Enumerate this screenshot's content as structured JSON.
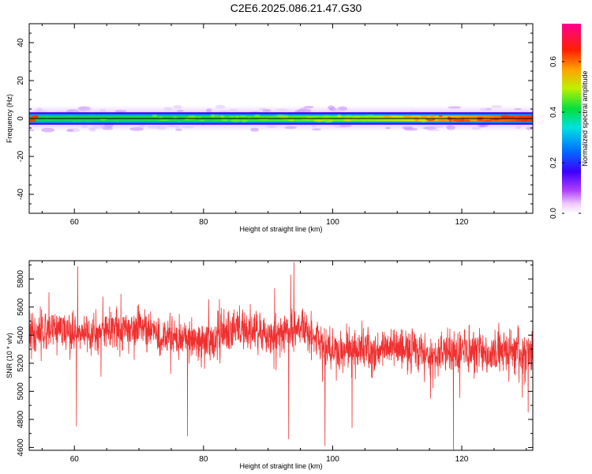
{
  "title": "C2E6.2025.086.21.47.G30",
  "chart_data": [
    {
      "type": "heatmap",
      "xlabel": "Height of straight line (km)",
      "ylabel": "Frequency (Hz)",
      "xlim": [
        53,
        131
      ],
      "ylim": [
        -50,
        50
      ],
      "xticks": [
        60,
        80,
        100,
        120
      ],
      "yticks": [
        40,
        20,
        0,
        -20,
        -40
      ],
      "colorbar": {
        "label": "Normalized spectral amplitude",
        "range": [
          0.0,
          0.75
        ],
        "ticks": [
          0.0,
          0.2,
          0.4,
          0.6
        ],
        "tick_labels": [
          "0.0",
          "0.2",
          "0.4",
          "0.6"
        ]
      },
      "band": {
        "center_hz": 0,
        "core_half_width_hz": 2,
        "halo_half_width_hz": 7,
        "amplitude_profile": [
          {
            "x": 55,
            "value": 0.3
          },
          {
            "x": 65,
            "value": 0.35
          },
          {
            "x": 75,
            "value": 0.38
          },
          {
            "x": 85,
            "value": 0.45
          },
          {
            "x": 95,
            "value": 0.48
          },
          {
            "x": 105,
            "value": 0.5
          },
          {
            "x": 115,
            "value": 0.58
          },
          {
            "x": 125,
            "value": 0.68
          },
          {
            "x": 130,
            "value": 0.72
          }
        ]
      }
    },
    {
      "type": "line",
      "xlabel": "Height of straight line (km)",
      "ylabel": "SNR (10 * v/v)",
      "xlim": [
        53,
        131
      ],
      "ylim": [
        4580,
        5930
      ],
      "xticks": [
        60,
        80,
        100,
        120
      ],
      "yticks": [
        5800,
        5600,
        5400,
        5200,
        5000,
        4800,
        4600
      ],
      "color": "#f03030",
      "trend": [
        {
          "x": 53,
          "y": 5420
        },
        {
          "x": 60,
          "y": 5430
        },
        {
          "x": 65,
          "y": 5420
        },
        {
          "x": 70,
          "y": 5470
        },
        {
          "x": 75,
          "y": 5380
        },
        {
          "x": 80,
          "y": 5360
        },
        {
          "x": 85,
          "y": 5440
        },
        {
          "x": 90,
          "y": 5400
        },
        {
          "x": 95,
          "y": 5450
        },
        {
          "x": 100,
          "y": 5260
        },
        {
          "x": 105,
          "y": 5300
        },
        {
          "x": 110,
          "y": 5310
        },
        {
          "x": 115,
          "y": 5260
        },
        {
          "x": 120,
          "y": 5290
        },
        {
          "x": 125,
          "y": 5280
        },
        {
          "x": 131,
          "y": 5270
        }
      ],
      "noise_amplitude": 150,
      "spikes": [
        {
          "x": 60.5,
          "y": 5890
        },
        {
          "x": 94.0,
          "y": 5920
        },
        {
          "x": 93.5,
          "y": 5830
        },
        {
          "x": 60.3,
          "y": 4750
        },
        {
          "x": 77.5,
          "y": 4680
        },
        {
          "x": 93.2,
          "y": 4660
        },
        {
          "x": 98.8,
          "y": 4610
        },
        {
          "x": 118.7,
          "y": 4580
        },
        {
          "x": 103.0,
          "y": 4740
        },
        {
          "x": 130.3,
          "y": 4850
        }
      ]
    }
  ]
}
